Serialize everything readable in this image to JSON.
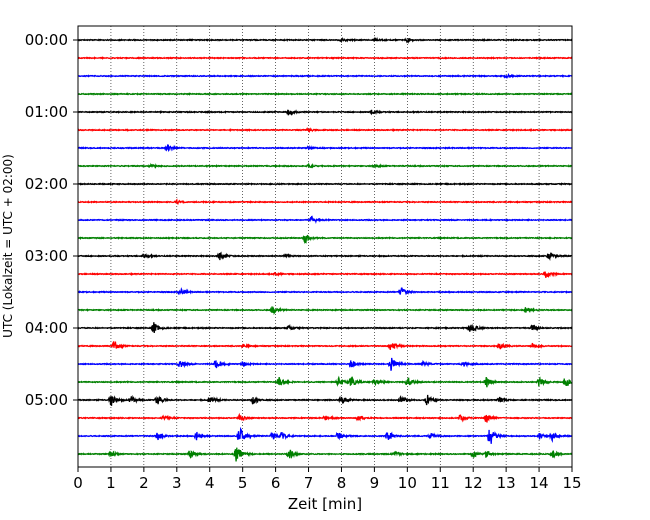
{
  "chart_data": {
    "type": "line",
    "title": "",
    "xlabel": "Zeit  [min]",
    "ylabel": "UTC (Lokalzeit = UTC + 02:00)",
    "xlim": [
      0,
      15
    ],
    "x_ticks": [
      "0",
      "1",
      "2",
      "3",
      "4",
      "5",
      "6",
      "7",
      "8",
      "9",
      "10",
      "11",
      "12",
      "13",
      "14",
      "15"
    ],
    "y_tick_labels": [
      "00:00",
      "01:00",
      "02:00",
      "03:00",
      "04:00",
      "05:00"
    ],
    "grid": "vertical dotted",
    "trace_interval_minutes": 15,
    "color_cycle": [
      "#000000",
      "#ff0000",
      "#0000ff",
      "#008000"
    ],
    "traces": [
      {
        "start": "00:00",
        "color": "#000000",
        "events": [
          [
            8.0,
            0.18
          ],
          [
            9.0,
            0.2
          ],
          [
            10.0,
            0.25
          ]
        ]
      },
      {
        "start": "00:15",
        "color": "#ff0000",
        "events": []
      },
      {
        "start": "00:30",
        "color": "#0000ff",
        "events": [
          [
            13.0,
            0.25
          ]
        ]
      },
      {
        "start": "00:45",
        "color": "#008000",
        "events": []
      },
      {
        "start": "01:00",
        "color": "#000000",
        "events": [
          [
            6.4,
            0.6
          ],
          [
            8.9,
            0.3
          ]
        ]
      },
      {
        "start": "01:15",
        "color": "#ff0000",
        "events": [
          [
            7.0,
            0.2
          ]
        ]
      },
      {
        "start": "01:30",
        "color": "#0000ff",
        "events": [
          [
            2.7,
            0.5
          ],
          [
            7.0,
            0.2
          ]
        ]
      },
      {
        "start": "01:45",
        "color": "#008000",
        "events": [
          [
            2.2,
            0.2
          ],
          [
            7.0,
            0.2
          ],
          [
            9.0,
            0.2
          ]
        ]
      },
      {
        "start": "02:00",
        "color": "#000000",
        "events": []
      },
      {
        "start": "02:15",
        "color": "#ff0000",
        "events": [
          [
            3.0,
            0.25
          ]
        ]
      },
      {
        "start": "02:30",
        "color": "#0000ff",
        "events": [
          [
            7.1,
            0.5
          ]
        ]
      },
      {
        "start": "02:45",
        "color": "#008000",
        "events": [
          [
            6.9,
            0.7
          ]
        ]
      },
      {
        "start": "03:00",
        "color": "#000000",
        "events": [
          [
            2.0,
            0.3
          ],
          [
            4.3,
            0.6
          ],
          [
            6.3,
            0.3
          ],
          [
            14.3,
            0.7
          ]
        ]
      },
      {
        "start": "03:15",
        "color": "#ff0000",
        "events": [
          [
            6.0,
            0.2
          ],
          [
            14.2,
            0.6
          ]
        ]
      },
      {
        "start": "03:30",
        "color": "#0000ff",
        "events": [
          [
            3.1,
            0.5
          ],
          [
            9.8,
            0.7
          ]
        ]
      },
      {
        "start": "03:45",
        "color": "#008000",
        "events": [
          [
            5.9,
            0.7
          ],
          [
            13.6,
            0.5
          ]
        ]
      },
      {
        "start": "04:00",
        "color": "#000000",
        "events": [
          [
            2.3,
            0.8
          ],
          [
            6.4,
            0.3
          ],
          [
            11.9,
            0.9
          ],
          [
            13.8,
            0.5
          ]
        ]
      },
      {
        "start": "04:15",
        "color": "#ff0000",
        "events": [
          [
            1.1,
            0.8
          ],
          [
            5.0,
            0.3
          ],
          [
            9.5,
            0.8
          ],
          [
            12.8,
            0.6
          ],
          [
            13.8,
            0.4
          ]
        ]
      },
      {
        "start": "04:30",
        "color": "#0000ff",
        "events": [
          [
            3.1,
            0.6
          ],
          [
            4.2,
            0.9
          ],
          [
            5.0,
            0.4
          ],
          [
            8.3,
            0.6
          ],
          [
            9.5,
            1.0
          ],
          [
            10.5,
            0.4
          ],
          [
            11.7,
            0.5
          ]
        ]
      },
      {
        "start": "04:45",
        "color": "#008000",
        "events": [
          [
            6.1,
            0.7
          ],
          [
            7.9,
            0.8
          ],
          [
            8.3,
            0.9
          ],
          [
            9.0,
            0.5
          ],
          [
            10.0,
            0.8
          ],
          [
            12.4,
            0.8
          ],
          [
            14.0,
            0.7
          ],
          [
            14.8,
            0.8
          ]
        ]
      },
      {
        "start": "05:00",
        "color": "#000000",
        "events": [
          [
            1.0,
            1.0
          ],
          [
            1.6,
            0.6
          ],
          [
            2.4,
            0.8
          ],
          [
            4.0,
            0.6
          ],
          [
            5.3,
            0.6
          ],
          [
            8.0,
            0.7
          ],
          [
            9.8,
            0.6
          ],
          [
            10.6,
            0.8
          ],
          [
            12.8,
            0.4
          ]
        ]
      },
      {
        "start": "05:15",
        "color": "#ff0000",
        "events": [
          [
            2.6,
            0.3
          ],
          [
            4.9,
            0.5
          ],
          [
            7.5,
            0.4
          ],
          [
            8.5,
            0.4
          ],
          [
            11.6,
            0.5
          ],
          [
            12.4,
            0.8
          ]
        ]
      },
      {
        "start": "05:30",
        "color": "#0000ff",
        "events": [
          [
            2.4,
            0.7
          ],
          [
            3.6,
            0.6
          ],
          [
            4.9,
            1.3
          ],
          [
            5.9,
            0.6
          ],
          [
            6.2,
            0.5
          ],
          [
            7.9,
            0.6
          ],
          [
            9.4,
            0.8
          ],
          [
            10.7,
            0.5
          ],
          [
            12.5,
            1.6
          ],
          [
            14.0,
            0.5
          ],
          [
            14.4,
            0.6
          ]
        ]
      },
      {
        "start": "05:45",
        "color": "#008000",
        "events": [
          [
            1.0,
            0.5
          ],
          [
            3.4,
            0.6
          ],
          [
            4.8,
            1.5
          ],
          [
            6.4,
            0.8
          ],
          [
            9.6,
            0.4
          ],
          [
            12.0,
            0.5
          ],
          [
            12.4,
            0.6
          ],
          [
            14.4,
            0.6
          ]
        ]
      }
    ]
  }
}
